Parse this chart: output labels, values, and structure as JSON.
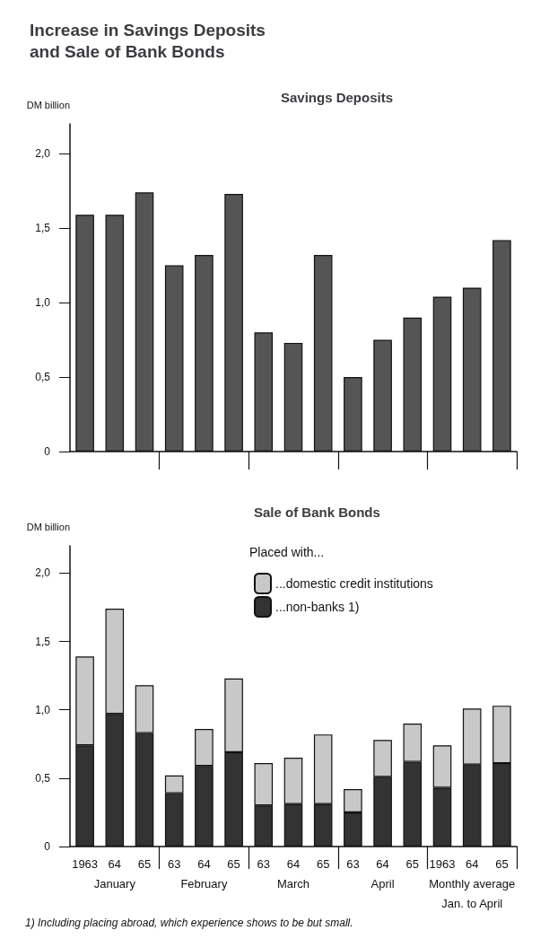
{
  "chart_data": [
    {
      "type": "bar",
      "title": "Increase in Savings Deposits\nand Sale of Bank Bonds",
      "subtitle": "Savings Deposits",
      "ylabel": "DM billion",
      "categories": [
        null,
        null,
        null,
        null,
        null,
        null,
        null,
        null,
        null,
        null,
        null,
        null,
        null,
        null,
        null
      ],
      "series": [
        {
          "color": "#555555",
          "values": [
            1.59,
            1.59,
            1.74,
            1.25,
            1.32,
            1.73,
            0.8,
            0.73,
            1.32,
            0.5,
            0.75,
            0.9,
            1.04,
            1.1,
            1.42
          ]
        }
      ],
      "ylim": [
        0,
        2.2
      ],
      "yticks": [
        0,
        {
          "value": 0.5,
          "label": "0,5"
        },
        {
          "value": 1,
          "label": "1,0"
        },
        {
          "value": 1.5,
          "label": "1,5"
        },
        {
          "value": 2,
          "label": "2,0"
        }
      ],
      "tick_labels": "y",
      "grid": false,
      "legend": false
    },
    {
      "type": "bar",
      "title": "Sale of Bank Bonds",
      "ylabel": "DM billion",
      "legend_title": "Placed with...",
      "stacked": true,
      "categories": [
        "1963",
        "64\nJanuary",
        "65",
        "63",
        "64\nFebruary",
        "65",
        "63",
        "64\nMarch",
        "65",
        "63",
        "64\nApril",
        "65",
        "1963",
        "64\nMonthly average\nJan. to April",
        "65"
      ],
      "series": [
        {
          "name": "...non-banks 1)",
          "color": "#333333",
          "values": [
            0.74,
            0.97,
            0.83,
            0.39,
            0.59,
            0.69,
            0.3,
            0.31,
            0.31,
            0.25,
            0.51,
            0.62,
            0.43,
            0.6,
            0.61
          ]
        },
        {
          "name": "...domestic credit institutions",
          "color": "#c8c8c8",
          "values": [
            0.65,
            0.77,
            0.35,
            0.13,
            0.27,
            0.54,
            0.31,
            0.34,
            0.51,
            0.17,
            0.27,
            0.28,
            0.31,
            0.41,
            0.42
          ]
        }
      ],
      "ylim": [
        0,
        2.2
      ],
      "yticks": [
        0,
        {
          "value": 0.5,
          "label": "0,5"
        },
        {
          "value": 1,
          "label": "1,0"
        },
        {
          "value": 1.5,
          "label": "1,5"
        },
        {
          "value": 2,
          "label": "2,0"
        }
      ],
      "grid": false,
      "legend": "top",
      "annotations": [
        "1) Including placing abroad, which experience shows to be but small."
      ]
    }
  ]
}
